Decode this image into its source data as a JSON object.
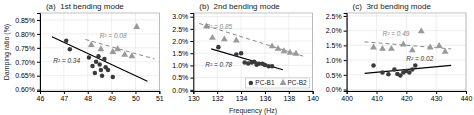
{
  "chart_data": [
    {
      "type": "scatter",
      "title": "(a)  1st bending mode",
      "ylabel": "Damping ratio (%)",
      "xlim": [
        46,
        51
      ],
      "ylim": [
        0.00595,
        0.00875
      ],
      "xticks": [
        46,
        47,
        48,
        49,
        50,
        51
      ],
      "yticks": [
        {
          "value": 0.006,
          "label": "0.60%"
        },
        {
          "value": 0.0065,
          "label": "0.65%"
        },
        {
          "value": 0.007,
          "label": "0.70%"
        },
        {
          "value": 0.0075,
          "label": "0.75%"
        },
        {
          "value": 0.008,
          "label": "0.80%"
        },
        {
          "value": 0.0085,
          "label": "0.85%"
        }
      ],
      "grid": true,
      "series": [
        {
          "type": "line",
          "color": "#000000",
          "line_style": "solid",
          "x": [
            46.5,
            50.5
          ],
          "values": [
            0.0079,
            0.0063
          ]
        },
        {
          "type": "line",
          "color": "#888888",
          "line_style": "dashed",
          "x": [
            47.9,
            50.8
          ],
          "values": [
            0.0078,
            0.0071
          ]
        },
        {
          "name": "PC-B1",
          "type": "scatter",
          "color": "#3a3a3a",
          "marker": "circle",
          "x": [
            47.1,
            47.25,
            48.05,
            48.2,
            48.3,
            48.35,
            48.45,
            48.5,
            48.55,
            48.6,
            48.7,
            48.75,
            48.85,
            49.05
          ],
          "values": [
            0.00775,
            0.00745,
            0.00715,
            0.00685,
            0.0066,
            0.007,
            0.0072,
            0.0069,
            0.0067,
            0.0065,
            0.0071,
            0.0068,
            0.0067,
            0.00645
          ]
        },
        {
          "name": "PC-B2",
          "type": "scatter",
          "color": "#999999",
          "marker": "triangle",
          "x": [
            48.15,
            48.55,
            49.05,
            49.25,
            49.55,
            49.85,
            50.05
          ],
          "values": [
            0.0076,
            0.00745,
            0.00735,
            0.00745,
            0.00725,
            0.0072,
            0.00825
          ]
        }
      ],
      "annotations": [
        {
          "text": "R² = 0.34",
          "x": 46.55,
          "y": 0.00695,
          "color": "#333333"
        },
        {
          "text": "R² = 0.08",
          "x": 48.5,
          "y": 0.00785,
          "color": "#888888"
        }
      ]
    },
    {
      "type": "scatter",
      "title": "(b)  2nd bending mode",
      "xlabel": "Frequency (Hz)",
      "xlim": [
        130,
        140
      ],
      "ylim": [
        -0.0005,
        0.0315
      ],
      "xticks": [
        130,
        132,
        134,
        136,
        138,
        140
      ],
      "yticks": [
        {
          "value": 0.0,
          "label": "0.0%"
        },
        {
          "value": 0.005,
          "label": "0.5%"
        },
        {
          "value": 0.01,
          "label": "1.0%"
        },
        {
          "value": 0.015,
          "label": "1.5%"
        },
        {
          "value": 0.02,
          "label": "2.0%"
        },
        {
          "value": 0.025,
          "label": "2.5%"
        },
        {
          "value": 0.03,
          "label": "3.0%"
        }
      ],
      "grid": true,
      "legend": "lower right",
      "series": [
        {
          "type": "line",
          "color": "#000000",
          "line_style": "solid",
          "x": [
            131.5,
            137.5
          ],
          "values": [
            0.0168,
            0.0082
          ]
        },
        {
          "type": "line",
          "color": "#888888",
          "line_style": "dashed",
          "x": [
            130.5,
            139.2
          ],
          "values": [
            0.0272,
            0.0138
          ]
        },
        {
          "name": "PC-B1",
          "type": "scatter",
          "color": "#3a3a3a",
          "marker": "circle",
          "x": [
            132.1,
            133.6,
            134.0,
            134.3,
            134.6,
            134.9,
            135.1,
            135.3,
            135.5,
            135.8,
            136.0,
            136.3,
            136.6
          ],
          "values": [
            0.0175,
            0.0145,
            0.015,
            0.0112,
            0.0108,
            0.0112,
            0.0115,
            0.0103,
            0.0107,
            0.0107,
            0.0102,
            0.0097,
            0.0097
          ]
        },
        {
          "name": "PC-B2",
          "type": "scatter",
          "color": "#999999",
          "marker": "triangle",
          "x": [
            131.1,
            131.6,
            132.6,
            133.6,
            136.6,
            137.1,
            137.6,
            138.1,
            138.6
          ],
          "values": [
            0.026,
            0.0213,
            0.0207,
            0.0202,
            0.0178,
            0.0168,
            0.0158,
            0.0152,
            0.0148
          ]
        }
      ],
      "annotations": [
        {
          "text": "R² = 0.78",
          "x": 131.0,
          "y": 0.0093,
          "color": "#333333"
        },
        {
          "text": "R² = 0.85",
          "x": 131.0,
          "y": 0.0248,
          "color": "#888888"
        }
      ]
    },
    {
      "type": "scatter",
      "title": "(c)  3rd bending mode",
      "xlim": [
        400,
        440
      ],
      "ylim": [
        -0.0005,
        0.026
      ],
      "xticks": [
        400,
        410,
        420,
        430,
        440
      ],
      "yticks": [
        {
          "value": 0.0,
          "label": "0.0%"
        },
        {
          "value": 0.005,
          "label": "0.5%"
        },
        {
          "value": 0.01,
          "label": "1.0%"
        },
        {
          "value": 0.015,
          "label": "1.5%"
        },
        {
          "value": 0.02,
          "label": "2.0%"
        },
        {
          "value": 0.025,
          "label": "2.5%"
        }
      ],
      "grid": true,
      "series": [
        {
          "type": "line",
          "color": "#000000",
          "line_style": "solid",
          "x": [
            406,
            435
          ],
          "values": [
            0.0055,
            0.0082
          ]
        },
        {
          "type": "line",
          "color": "#888888",
          "line_style": "dashed",
          "x": [
            406,
            435
          ],
          "values": [
            0.0162,
            0.0138
          ]
        },
        {
          "name": "PC-B1",
          "type": "scatter",
          "color": "#3a3a3a",
          "marker": "circle",
          "x": [
            409,
            412,
            414,
            416,
            417,
            418,
            419,
            420,
            421,
            422,
            423
          ],
          "values": [
            0.0082,
            0.0058,
            0.0052,
            0.0068,
            0.0053,
            0.0048,
            0.0058,
            0.0063,
            0.0058,
            0.0068,
            0.0082
          ]
        },
        {
          "name": "PC-B2",
          "type": "scatter",
          "color": "#999999",
          "marker": "triangle",
          "x": [
            409,
            412,
            415,
            419,
            422,
            425,
            428,
            431,
            433
          ],
          "values": [
            0.0143,
            0.0138,
            0.0138,
            0.0153,
            0.0133,
            0.0198,
            0.0143,
            0.0148,
            0.0128
          ]
        }
      ],
      "annotations": [
        {
          "text": "R² = 0.02",
          "x": 420,
          "y": 0.0098,
          "color": "#333333"
        },
        {
          "text": "R² = 0.49",
          "x": 412,
          "y": 0.0182,
          "color": "#888888"
        }
      ]
    }
  ]
}
